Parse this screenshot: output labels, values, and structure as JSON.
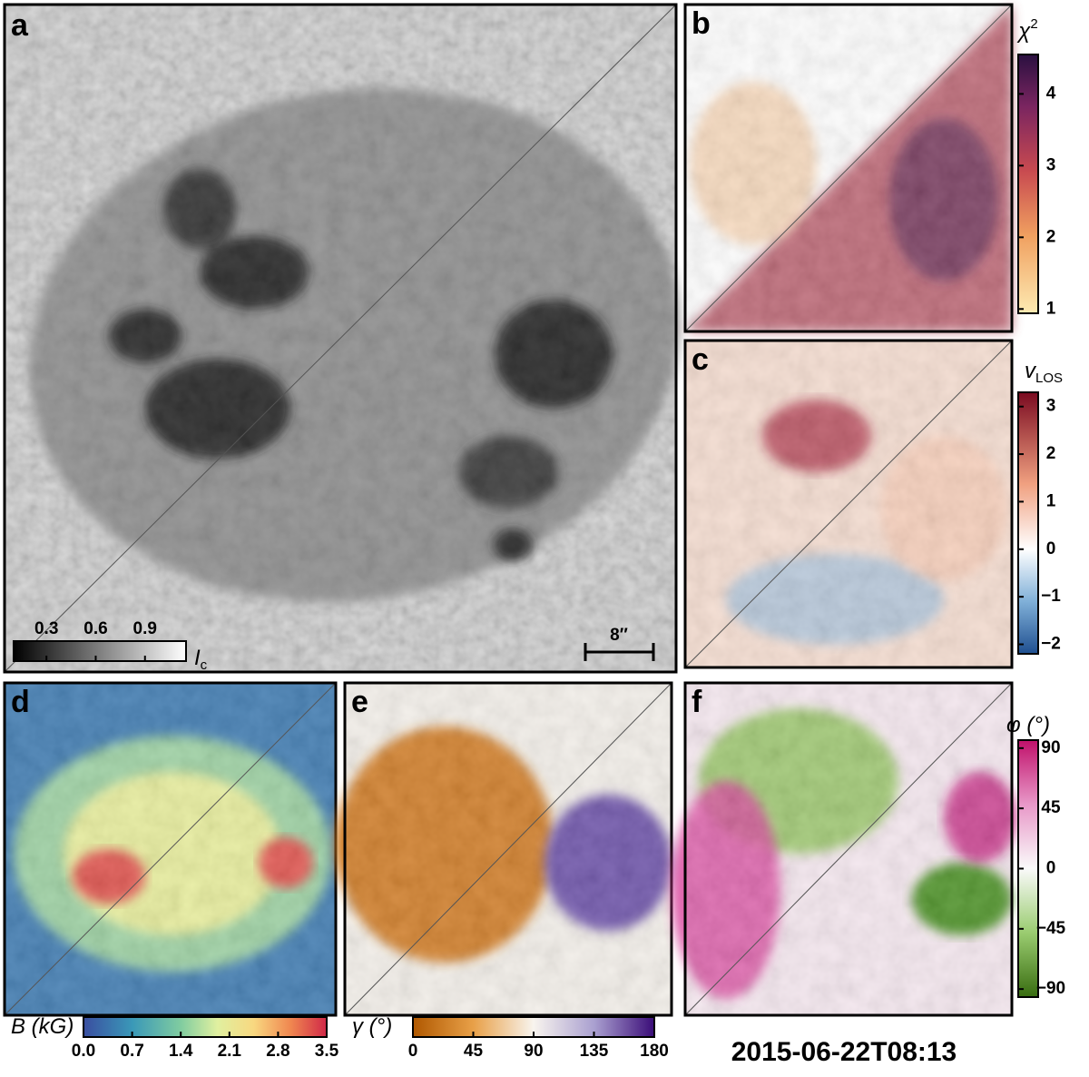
{
  "panels": [
    {
      "letter": "a",
      "colorbar": {
        "symbol": "I",
        "subscript": "c",
        "lim": [
          0.1,
          1.15
        ],
        "ticks": [
          0.3,
          0.6,
          0.9
        ]
      },
      "scale_bar": "8″"
    },
    {
      "letter": "b",
      "colorbar": {
        "symbol": "χ",
        "superscript": "2",
        "lim": [
          0.94,
          4.55
        ],
        "ticks": [
          1,
          2,
          3,
          4
        ]
      }
    },
    {
      "letter": "c",
      "colorbar": {
        "symbol": "v",
        "subscript": "LOS",
        "lim": [
          -2.2,
          3.3
        ],
        "ticks": [
          {
            "value": -2,
            "label": "−2"
          },
          {
            "value": -1,
            "label": "−1"
          },
          0,
          1,
          2,
          3
        ]
      }
    },
    {
      "letter": "d",
      "colorbar": {
        "symbol": "B (kG)",
        "lim": [
          0,
          3.5
        ],
        "ticks": [
          {
            "value": 0,
            "label": "0.0"
          },
          0.7,
          1.4,
          2.1,
          2.8,
          3.5
        ]
      }
    },
    {
      "letter": "e",
      "colorbar": {
        "symbol": "γ (°)",
        "lim": [
          0,
          180
        ],
        "ticks": [
          0,
          45,
          90,
          135,
          180
        ]
      }
    },
    {
      "letter": "f",
      "colorbar": {
        "symbol": "φ (°)",
        "lim": [
          -96,
          96
        ],
        "ticks": [
          {
            "value": -90,
            "label": "−90"
          },
          {
            "value": -45,
            "label": "−45"
          },
          0,
          45,
          90
        ]
      }
    }
  ],
  "timestamp": "2015-06-22T08:13"
}
